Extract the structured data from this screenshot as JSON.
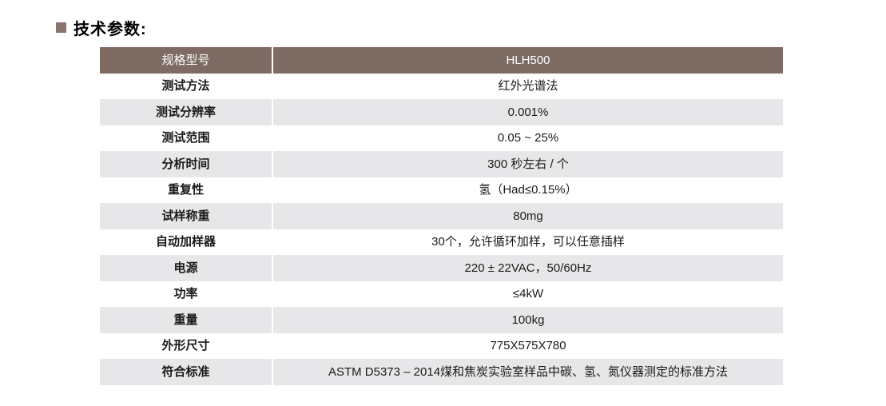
{
  "page": {
    "background_color": "#ffffff"
  },
  "title": {
    "text": "技术参数:",
    "bullet_color": "#8a7470",
    "text_color": "#000000"
  },
  "table": {
    "colors": {
      "header_bg": "#7e6b64",
      "header_text": "#ffffff",
      "alt_row_bg": "#e7e7e9",
      "row_bg": "#ffffff",
      "column_divider": "#ffffff"
    },
    "header": {
      "label": "规格型号",
      "value": "HLH500"
    },
    "rows": [
      {
        "label": "测试方法",
        "value": "红外光谱法"
      },
      {
        "label": "测试分辨率",
        "value": "0.001%"
      },
      {
        "label": "测试范围",
        "value": "0.05 ~ 25%"
      },
      {
        "label": "分析时间",
        "value": "300 秒左右 / 个"
      },
      {
        "label": "重复性",
        "value": "氢（Had≤0.15%）"
      },
      {
        "label": "试样称重",
        "value": "80mg"
      },
      {
        "label": "自动加样器",
        "value": "30个，允许循环加样，可以任意插样"
      },
      {
        "label": "电源",
        "value": "220 ± 22VAC，50/60Hz"
      },
      {
        "label": "功率",
        "value": "≤4kW"
      },
      {
        "label": "重量",
        "value": "100kg"
      },
      {
        "label": "外形尺寸",
        "value": "775X575X780"
      },
      {
        "label": "符合标准",
        "value": "ASTM D5373 – 2014煤和焦炭实验室样品中碳、氢、氮仪器测定的标准方法"
      }
    ]
  }
}
